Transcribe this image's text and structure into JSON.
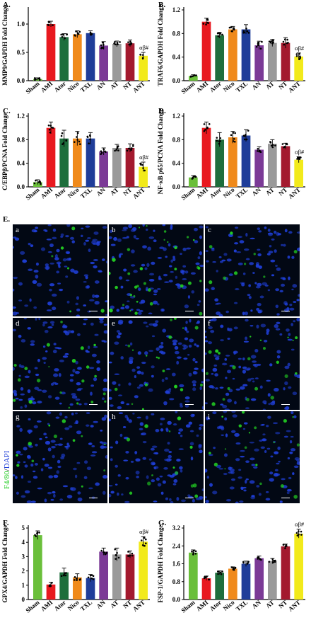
{
  "colors": {
    "Sham": "#6abf3a",
    "AMI": "#e8191f",
    "Ator": "#1e6e3c",
    "Nico": "#f08a1b",
    "TXL": "#1f3d99",
    "AN": "#7b3a96",
    "AT": "#9a9a9a",
    "NT": "#a3192e",
    "ANT": "#f2ea1b",
    "stain_f480": "#22cc22",
    "stain_dapi": "#1f3fd8"
  },
  "chart_data": [
    {
      "panel": "A.",
      "type": "bar",
      "categories": [
        "Sham",
        "AMI",
        "Ator",
        "Nico",
        "TXL",
        "AN",
        "AT",
        "NT",
        "ANT"
      ],
      "values": [
        0.03,
        1.0,
        0.77,
        0.82,
        0.84,
        0.62,
        0.65,
        0.66,
        0.44
      ],
      "errors": [
        0.02,
        0.05,
        0.06,
        0.06,
        0.04,
        0.07,
        0.05,
        0.06,
        0.06
      ],
      "ylabel": "MMP9/GAPDH Fold Change",
      "ylim": [
        0,
        1.25
      ],
      "yticks": [
        0.0,
        0.5,
        1.0
      ],
      "annotations": [
        {
          "category": "ANT",
          "text": "αβ#"
        }
      ]
    },
    {
      "panel": "B.",
      "type": "bar",
      "categories": [
        "Sham",
        "AMI",
        "Ator",
        "Nico",
        "TXL",
        "AN",
        "AT",
        "NT",
        "ANT"
      ],
      "values": [
        0.08,
        1.0,
        0.77,
        0.87,
        0.87,
        0.6,
        0.64,
        0.64,
        0.41
      ],
      "errors": [
        0.02,
        0.06,
        0.05,
        0.05,
        0.08,
        0.07,
        0.06,
        0.09,
        0.06
      ],
      "ylabel": "TRAF6/GAPDH Fold Change",
      "ylim": [
        0,
        1.2
      ],
      "yticks": [
        0.0,
        0.4,
        0.8,
        1.2
      ],
      "annotations": [
        {
          "category": "ANT",
          "text": "αβ#"
        }
      ]
    },
    {
      "panel": "C.",
      "type": "bar",
      "categories": [
        "Sham",
        "AMI",
        "Ator",
        "Nico",
        "TXL",
        "AN",
        "AT",
        "NT",
        "ANT"
      ],
      "values": [
        0.08,
        1.0,
        0.82,
        0.82,
        0.82,
        0.6,
        0.66,
        0.66,
        0.34
      ],
      "errors": [
        0.04,
        0.1,
        0.14,
        0.12,
        0.1,
        0.06,
        0.06,
        0.07,
        0.08
      ],
      "ylabel": "C/EBPβ/PCNA Fold Change",
      "ylim": [
        0,
        1.2
      ],
      "yticks": [
        0.0,
        0.4,
        0.8,
        1.2
      ],
      "annotations": [
        {
          "category": "ANT",
          "text": "αβ#"
        }
      ]
    },
    {
      "panel": "D.",
      "type": "bar",
      "categories": [
        "Sham",
        "AMI",
        "Ator",
        "Nico",
        "TXL",
        "AN",
        "AT",
        "NT",
        "ANT"
      ],
      "values": [
        0.16,
        1.0,
        0.8,
        0.84,
        0.87,
        0.63,
        0.73,
        0.69,
        0.46
      ],
      "errors": [
        0.03,
        0.1,
        0.12,
        0.1,
        0.1,
        0.05,
        0.07,
        0.05,
        0.05
      ],
      "ylabel": "NF-κB p65/PCNA Fold Change",
      "ylim": [
        0,
        1.2
      ],
      "yticks": [
        0.0,
        0.4,
        0.8,
        1.2
      ],
      "annotations": [
        {
          "category": "ANT",
          "text": "αβ#"
        }
      ]
    },
    {
      "panel": "F.",
      "type": "bar",
      "categories": [
        "Sham",
        "AMI",
        "Ator",
        "Nico",
        "TXL",
        "AN",
        "AT",
        "NT",
        "ANT"
      ],
      "values": [
        4.5,
        1.05,
        1.9,
        1.55,
        1.5,
        3.35,
        3.15,
        3.15,
        4.05
      ],
      "errors": [
        0.3,
        0.15,
        0.3,
        0.25,
        0.25,
        0.25,
        0.45,
        0.25,
        0.35
      ],
      "ylabel": "GPX4/GAPDH Fold Change",
      "ylim": [
        0,
        5
      ],
      "yticks": [
        0,
        1,
        2,
        3,
        4,
        5
      ],
      "annotations": [
        {
          "category": "ANT",
          "text": "αβ#"
        }
      ]
    },
    {
      "panel": "G.",
      "type": "bar",
      "categories": [
        "Sham",
        "AMI",
        "Ator",
        "Nico",
        "TXL",
        "AN",
        "AT",
        "NT",
        "ANT"
      ],
      "values": [
        2.1,
        0.95,
        1.2,
        1.38,
        1.6,
        1.85,
        1.72,
        2.38,
        2.95
      ],
      "errors": [
        0.12,
        0.1,
        0.08,
        0.08,
        0.12,
        0.1,
        0.12,
        0.1,
        0.2
      ],
      "ylabel": "FSP-1/GAPDH Fold Change",
      "ylim": [
        0,
        3.2
      ],
      "yticks": [
        0.0,
        0.8,
        1.6,
        2.4,
        3.2
      ],
      "annotations": [
        {
          "category": "ANT",
          "text": "αβ#"
        }
      ]
    }
  ],
  "panel_e": {
    "label": "E.",
    "stain_f480": "F4/80",
    "stain_sep": "/",
    "stain_dapi": "DAPI",
    "tiles": [
      {
        "letter": "a",
        "density": 0.1
      },
      {
        "letter": "b",
        "density": 0.55
      },
      {
        "letter": "c",
        "density": 0.15
      },
      {
        "letter": "d",
        "density": 0.35
      },
      {
        "letter": "e",
        "density": 0.3
      },
      {
        "letter": "f",
        "density": 0.35
      },
      {
        "letter": "g",
        "density": 0.2
      },
      {
        "letter": "h",
        "density": 0.22
      },
      {
        "letter": "i",
        "density": 0.3
      }
    ]
  }
}
